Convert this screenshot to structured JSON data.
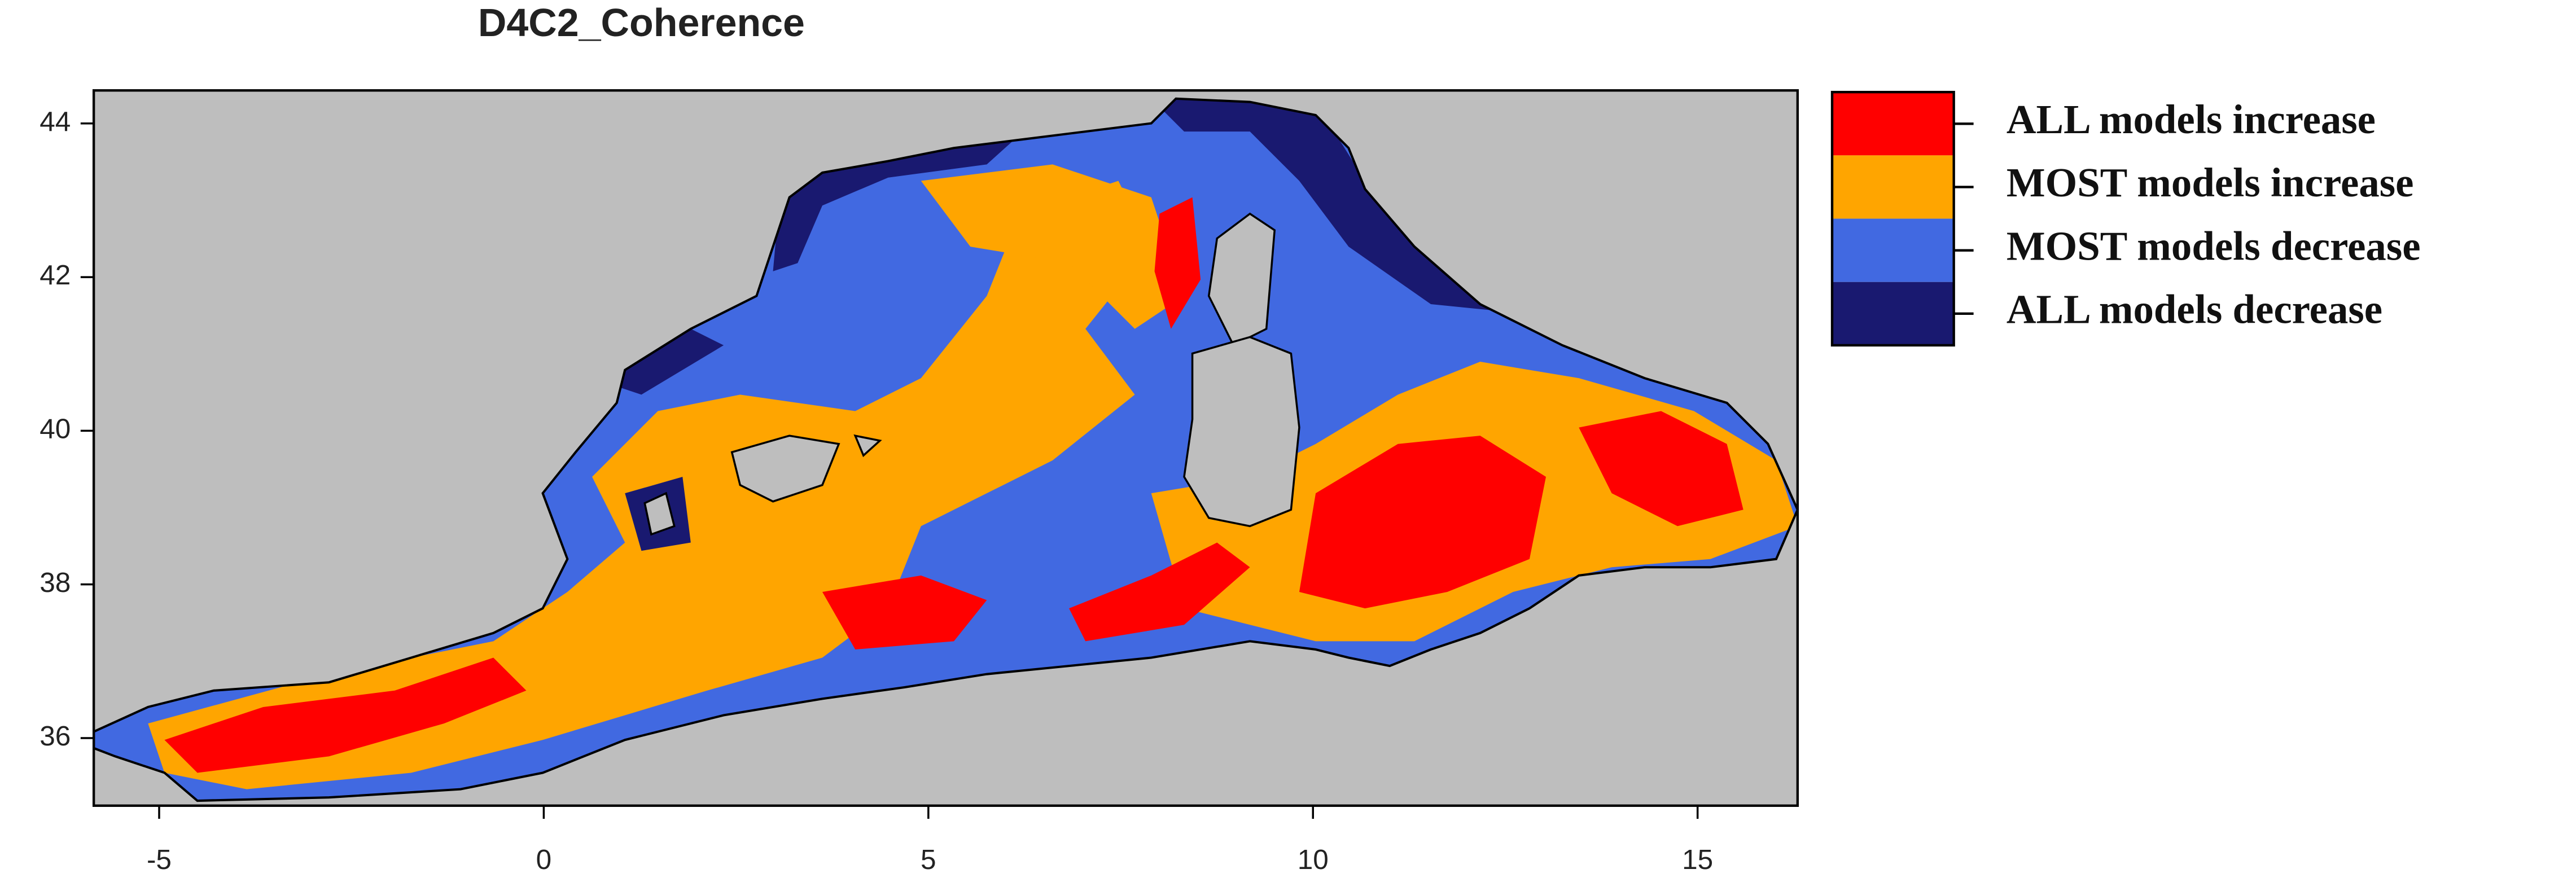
{
  "chart_data": {
    "type": "map",
    "title": "D4C2_Coherence",
    "xlim": [
      -5.85,
      16.3
    ],
    "xticks": [
      -5,
      0,
      5,
      10,
      15
    ],
    "ylim": [
      35.12,
      44.43
    ],
    "yticks": [
      36,
      38,
      40,
      42,
      44
    ],
    "background": "#bebebe",
    "legend": [
      {
        "label": "ALL models increase",
        "color": "#ff0000"
      },
      {
        "label": "MOST models increase",
        "color": "#ffa500"
      },
      {
        "label": "MOST models decrease",
        "color": "#4169e1"
      },
      {
        "label": "ALL models decrease",
        "color": "#191970"
      }
    ]
  }
}
